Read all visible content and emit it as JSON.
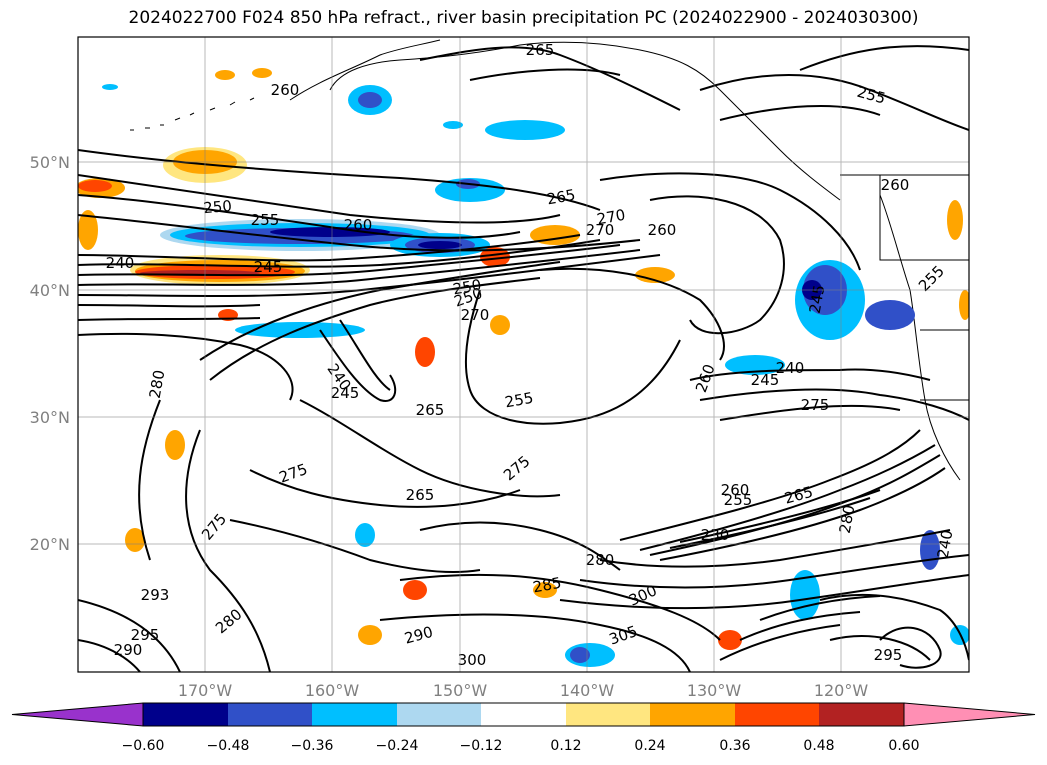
{
  "title": "2024022700 F024 850 hPa refract., river basin precipitation PC (2024022900 - 2024030300)",
  "lat_labels": [
    "50°N",
    "40°N",
    "30°N",
    "20°N"
  ],
  "lon_labels": [
    "170°W",
    "160°W",
    "150°W",
    "140°W",
    "130°W",
    "120°W"
  ],
  "contour_labels": [
    "250",
    "255",
    "260",
    "265",
    "270",
    "260",
    "240",
    "245",
    "260",
    "250",
    "265",
    "270",
    "280",
    "240",
    "245",
    "255",
    "250",
    "245",
    "240",
    "275",
    "275",
    "275",
    "265",
    "260",
    "255",
    "230",
    "280",
    "285",
    "300",
    "305",
    "300",
    "290",
    "295",
    "290",
    "293",
    "280",
    "275",
    "265",
    "240",
    "245",
    "260",
    "265",
    "270",
    "255",
    "260",
    "280",
    "295",
    "255"
  ],
  "colorbar": {
    "tick_labels": [
      "−0.60",
      "−0.48",
      "−0.36",
      "−0.24",
      "−0.12",
      "0.12",
      "0.24",
      "0.36",
      "0.48",
      "0.60"
    ],
    "colors": [
      "#9932cc",
      "#00008b",
      "#3050c8",
      "#00bfff",
      "#add8f0",
      "#ffffff",
      "#ffe680",
      "#ffa500",
      "#ff4500",
      "#b22222",
      "#ff8fb4"
    ]
  }
}
